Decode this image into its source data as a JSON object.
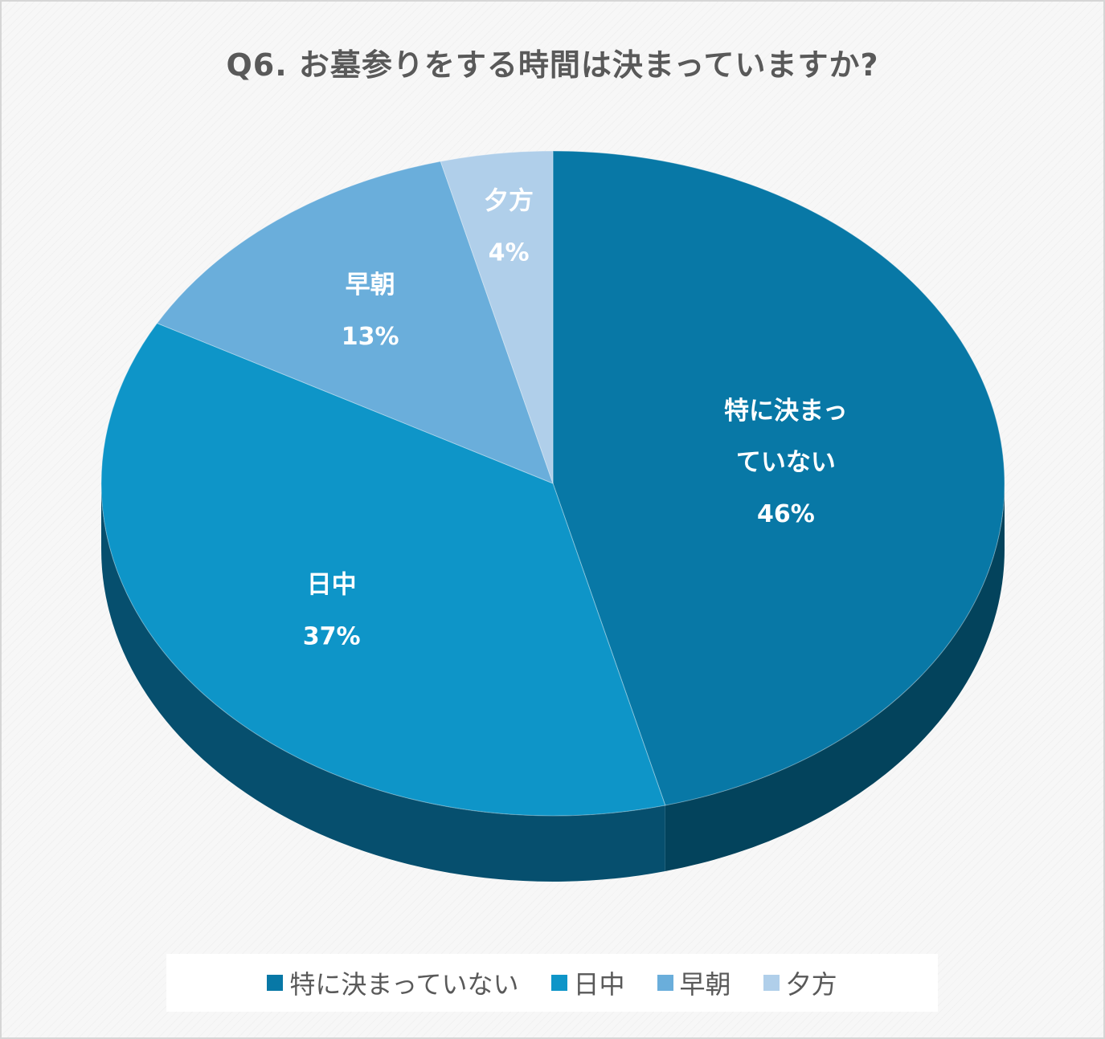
{
  "chart_data": {
    "type": "pie",
    "title": "Q6. お墓参りをする時間は決まっていますか?",
    "style": "3d",
    "data_labels_shown": true,
    "legend_position": "bottom",
    "slices": [
      {
        "label": "特に決まっていない",
        "label_lines": [
          "特に決まっ",
          "ていない"
        ],
        "value": 46,
        "display": "46%",
        "color": "#0878a6",
        "side_color": "#03435c"
      },
      {
        "label": "日中",
        "label_lines": [
          "日中"
        ],
        "value": 37,
        "display": "37%",
        "color": "#0e95c8",
        "side_color": "#064f6e"
      },
      {
        "label": "早朝",
        "label_lines": [
          "早朝"
        ],
        "value": 13,
        "display": "13%",
        "color": "#6aaedb",
        "side_color": "#3a78a4"
      },
      {
        "label": "夕方",
        "label_lines": [
          "夕方"
        ],
        "value": 4,
        "display": "4%",
        "color": "#b0cfea",
        "side_color": "#7aa4c8"
      }
    ]
  },
  "legend": {
    "items": [
      {
        "label": "特に決まっていない",
        "color": "#0878a6"
      },
      {
        "label": "日中",
        "color": "#0e95c8"
      },
      {
        "label": "早朝",
        "color": "#6aaedb"
      },
      {
        "label": "夕方",
        "color": "#b0cfea"
      }
    ]
  }
}
